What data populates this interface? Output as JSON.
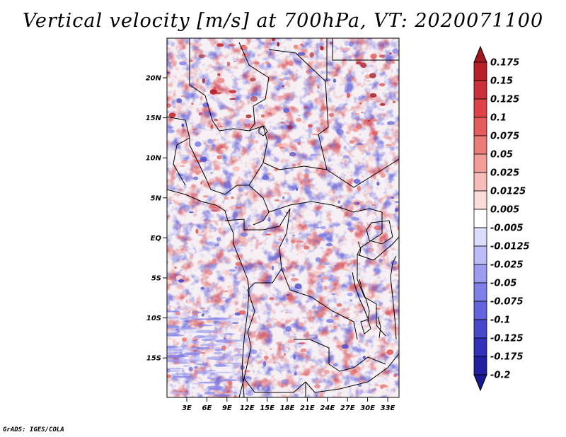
{
  "title": "Vertical velocity [m/s] at 700hPa, VT: 2020071100",
  "credit": "GrADS: IGES/COLA",
  "map": {
    "variable": "Vertical velocity",
    "units": "m/s",
    "level": "700hPa",
    "valid_time": "2020071100",
    "lat_labels": [
      "20N",
      "15N",
      "10N",
      "5N",
      "EQ",
      "5S",
      "10S",
      "15S"
    ],
    "lon_labels": [
      "3E",
      "6E",
      "9E",
      "12E",
      "15E",
      "18E",
      "21E",
      "24E",
      "27E",
      "30E",
      "33E"
    ]
  },
  "colorbar": {
    "labels": [
      "0.175",
      "0.15",
      "0.125",
      "0.1",
      "0.075",
      "0.05",
      "0.025",
      "0.0125",
      "0.005",
      "-0.005",
      "-0.0125",
      "-0.025",
      "-0.05",
      "-0.075",
      "-0.1",
      "-0.125",
      "-0.175",
      "-0.2"
    ],
    "colors": [
      "#a01820",
      "#b82028",
      "#cc3038",
      "#dc4448",
      "#e45c5c",
      "#ec7c78",
      "#f49c98",
      "#f8bcb8",
      "#fcdcd8",
      "#ffffff",
      "#dcdcfc",
      "#bcbcf8",
      "#9c9cf0",
      "#8080e8",
      "#6464dc",
      "#4848cc",
      "#3030b8",
      "#2020a0",
      "#181890"
    ]
  },
  "palette": {
    "neutral": "#f6f0f4",
    "pos": "#d23c44",
    "neg": "#5a5ad8",
    "border": "#000000"
  }
}
